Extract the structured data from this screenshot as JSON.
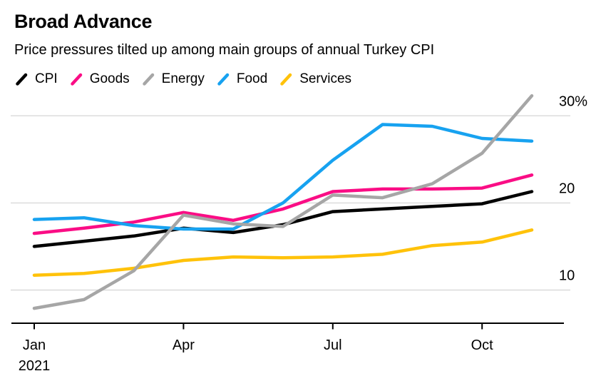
{
  "header": {
    "title": "Broad Advance",
    "subtitle": "Price pressures tilted up among main groups of annual Turkey CPI"
  },
  "colors": {
    "background": "#ffffff",
    "gridline": "#d9d9d9",
    "axis": "#000000",
    "text": "#000000"
  },
  "chart_data": {
    "type": "line",
    "title": "Broad Advance",
    "subtitle": "Price pressures tilted up among main groups of annual Turkey CPI",
    "categories": [
      "Jan",
      "Feb",
      "Mar",
      "Apr",
      "May",
      "Jun",
      "Jul",
      "Aug",
      "Sep",
      "Oct",
      "Nov"
    ],
    "x_axis": {
      "tick_indices": [
        0,
        3,
        6,
        9
      ],
      "tick_labels": [
        "Jan",
        "Apr",
        "Jul",
        "Oct"
      ],
      "year_label": "2021"
    },
    "y_axis": {
      "unit": "%",
      "side": "right",
      "ticks": [
        {
          "value": 10,
          "label": "10"
        },
        {
          "value": 20,
          "label": "20"
        },
        {
          "value": 30,
          "label": "30%"
        }
      ],
      "range": [
        6.2,
        32.5
      ]
    },
    "grid": true,
    "legend_position": "top",
    "series": [
      {
        "name": "CPI",
        "color": "#000000",
        "values": [
          15.0,
          15.6,
          16.2,
          17.1,
          16.6,
          17.5,
          19.0,
          19.3,
          19.6,
          19.9,
          21.3
        ]
      },
      {
        "name": "Goods",
        "color": "#fa0d85",
        "values": [
          16.5,
          17.1,
          17.8,
          18.9,
          18.0,
          19.3,
          21.3,
          21.6,
          21.6,
          21.7,
          23.2
        ]
      },
      {
        "name": "Energy",
        "color": "#a6a6a6",
        "values": [
          7.9,
          8.9,
          12.2,
          18.6,
          17.6,
          17.3,
          20.9,
          20.6,
          22.2,
          25.7,
          32.3
        ]
      },
      {
        "name": "Food",
        "color": "#17a2f0",
        "values": [
          18.1,
          18.3,
          17.4,
          17.0,
          17.0,
          20.0,
          24.9,
          29.0,
          28.8,
          27.4,
          27.1
        ]
      },
      {
        "name": "Services",
        "color": "#ffc20a",
        "values": [
          11.7,
          11.9,
          12.5,
          13.4,
          13.8,
          13.7,
          13.8,
          14.1,
          15.1,
          15.5,
          16.9
        ]
      }
    ],
    "draw_order": [
      "CPI",
      "Goods",
      "Services",
      "Food",
      "Energy"
    ]
  }
}
